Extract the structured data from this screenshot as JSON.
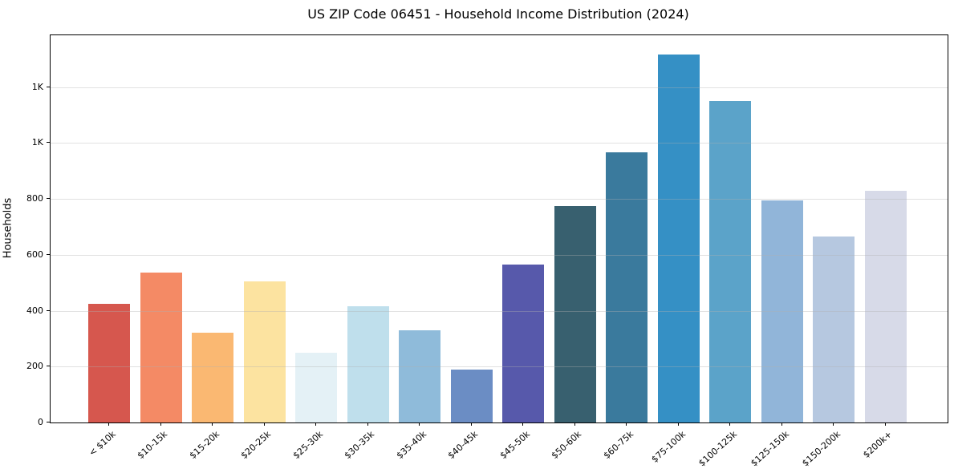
{
  "chart_data": {
    "type": "bar",
    "title": "US ZIP Code 06451 - Household Income Distribution (2024)",
    "xlabel": "",
    "ylabel": "Households",
    "categories": [
      "< $10k",
      "$10-15k",
      "$15-20k",
      "$20-25k",
      "$25-30k",
      "$30-35k",
      "$35-40k",
      "$40-45k",
      "$45-50k",
      "$50-60k",
      "$60-75k",
      "$75-100k",
      "$100-125k",
      "$125-150k",
      "$150-200k",
      "$200k+"
    ],
    "values": [
      425,
      535,
      320,
      505,
      250,
      415,
      330,
      190,
      565,
      775,
      965,
      1315,
      1150,
      795,
      665,
      830
    ],
    "bar_colors": [
      "#d6574e",
      "#f48a65",
      "#fab872",
      "#fce3a0",
      "#e4f1f6",
      "#bfdfec",
      "#8fbbda",
      "#6b8dc4",
      "#5759ab",
      "#38606f",
      "#3a7a9d",
      "#3590c5",
      "#5ba3c9",
      "#91b5d9",
      "#b6c8e0",
      "#d7dae8"
    ],
    "ylim": [
      0,
      1385
    ],
    "yticks": {
      "values": [
        0,
        200,
        400,
        600,
        800,
        1000,
        1200
      ],
      "labels": [
        "0",
        "200",
        "400",
        "600",
        "800",
        "1K",
        "1K"
      ]
    },
    "grid": "horizontal-only, light gray, drawn above bars",
    "legend": "none",
    "background_color": "#ffffff",
    "spine_color": "#000000"
  }
}
